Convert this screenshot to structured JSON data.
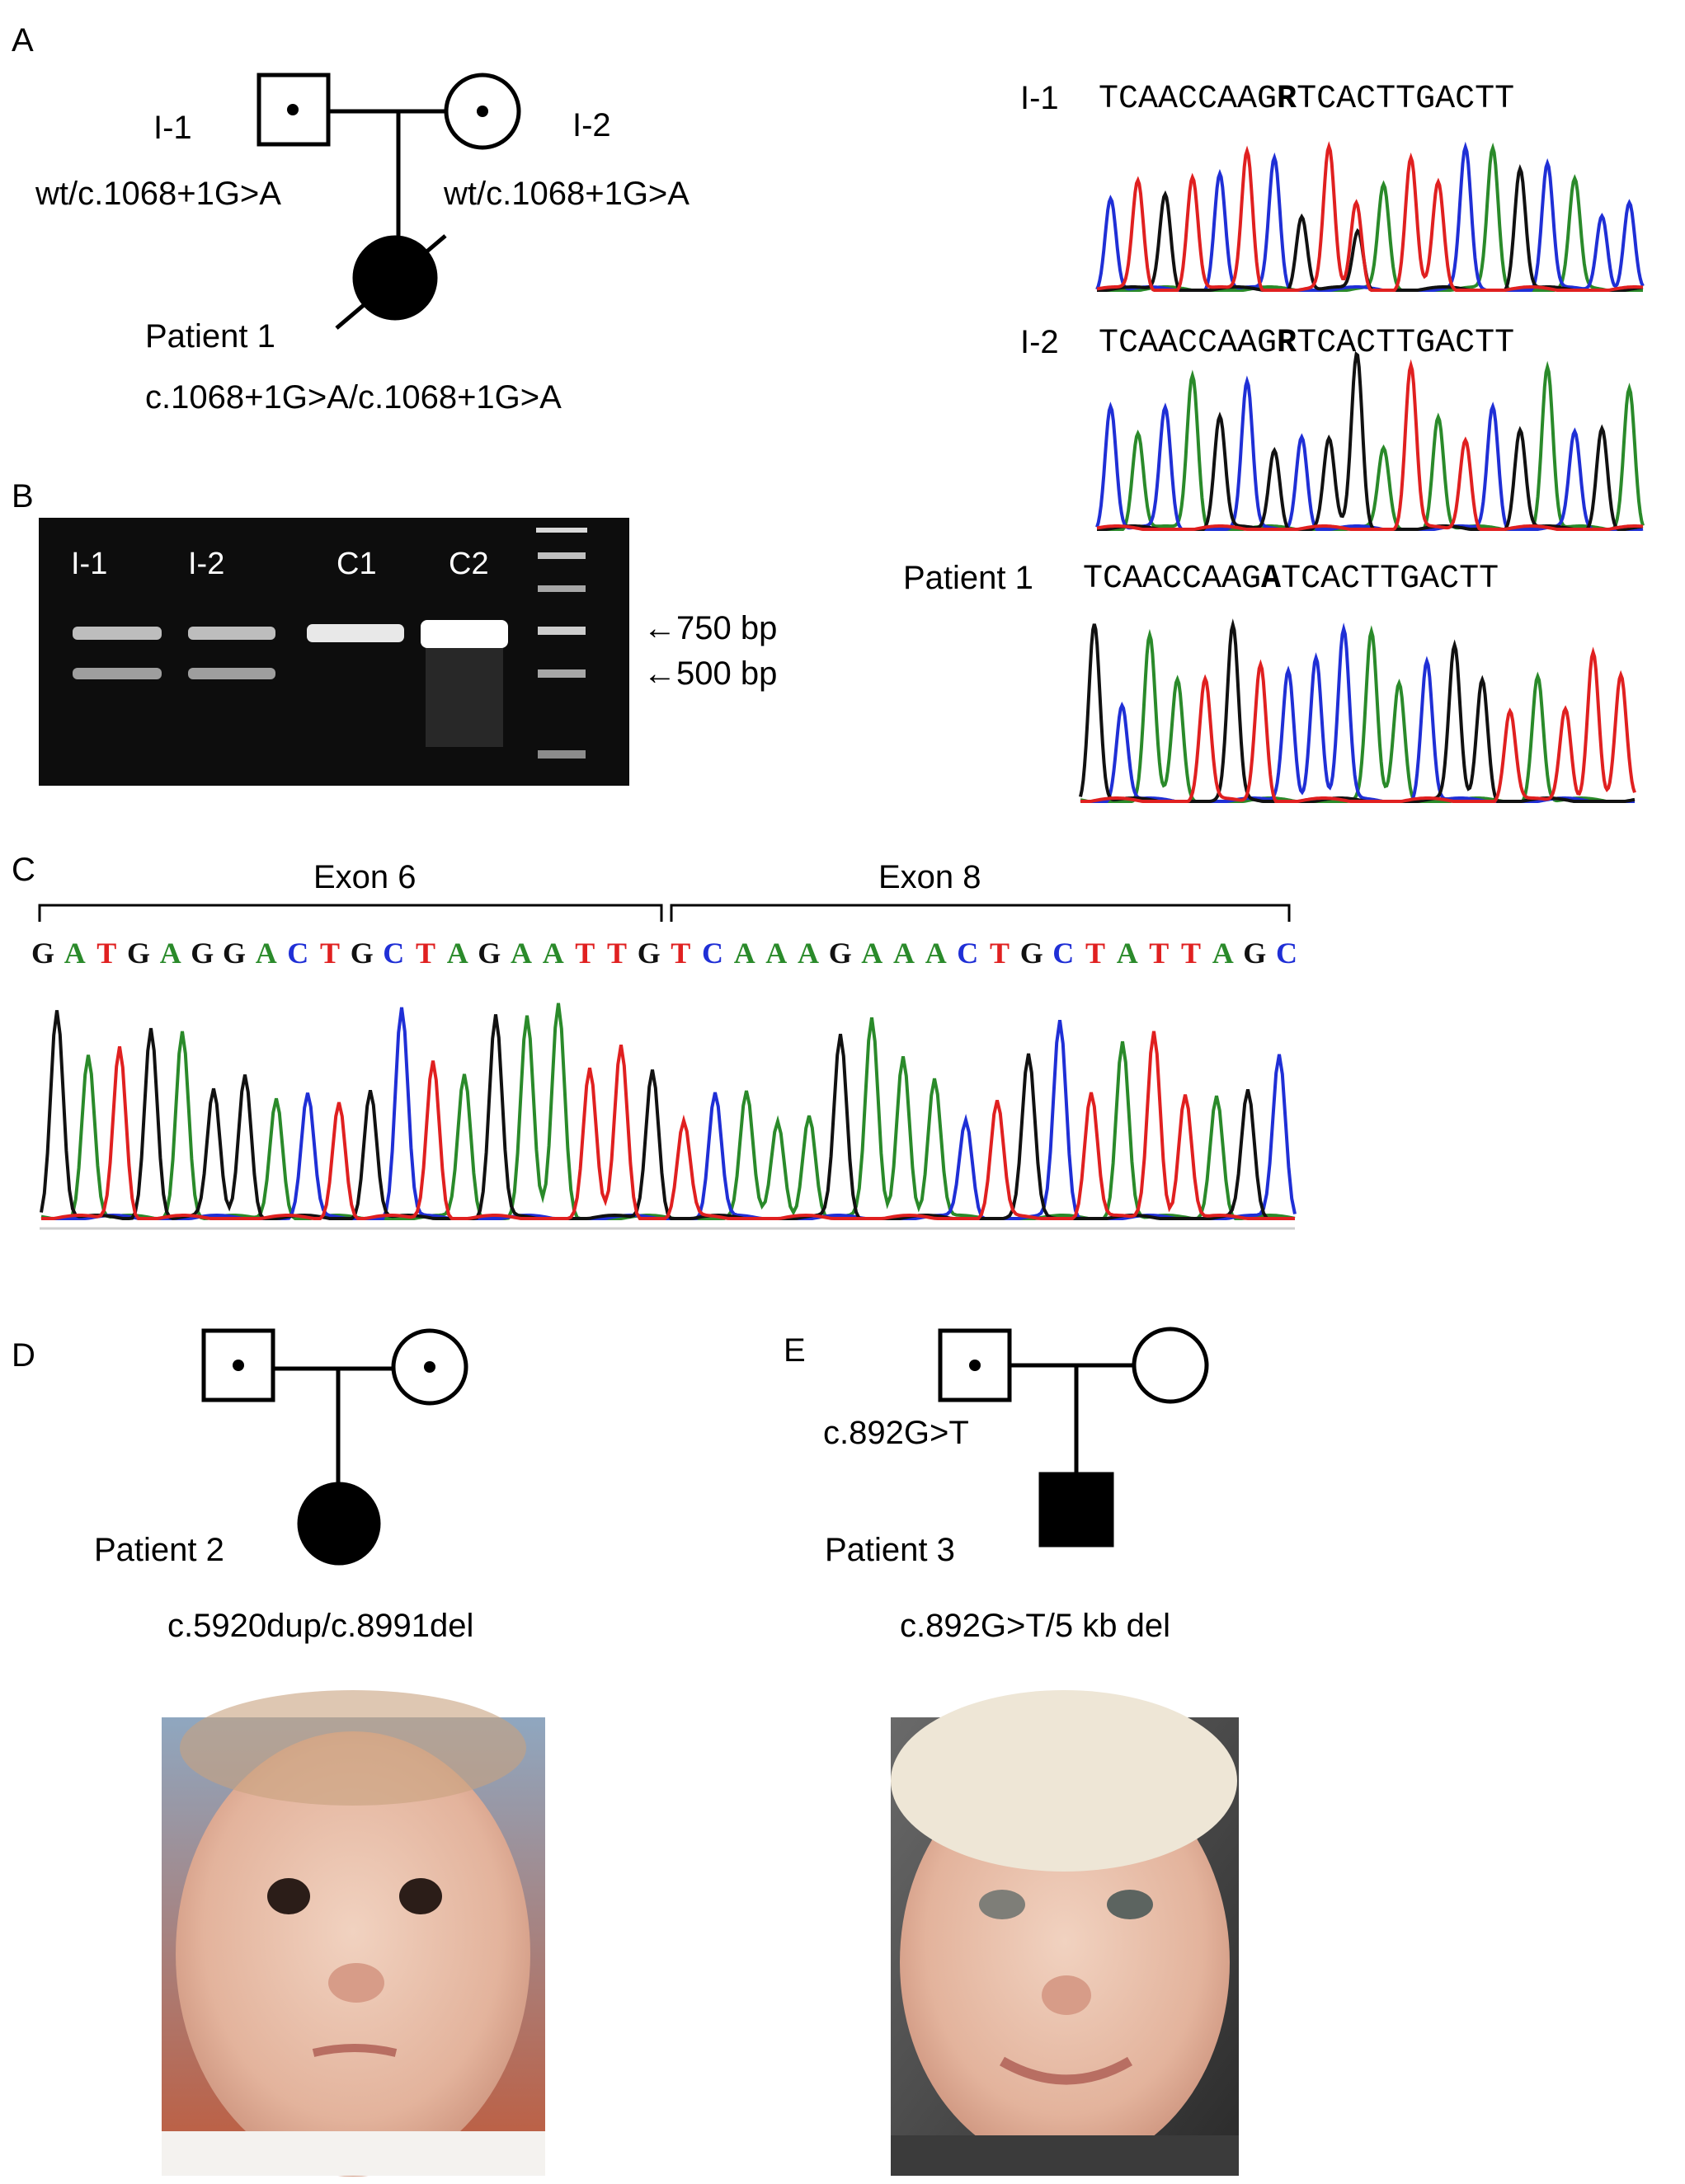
{
  "panels": {
    "A": {
      "label": "A",
      "pedigree": {
        "father_id": "I-1",
        "mother_id": "I-2",
        "father_genotype": "wt/c.1068+1G>A",
        "mother_genotype": "wt/c.1068+1G>A",
        "proband_name": "Patient 1",
        "proband_genotype": "c.1068+1G>A/c.1068+1G>A"
      },
      "traces": [
        {
          "label": "I-1",
          "seq_before": "TCAACCAAG",
          "seq_variant": "R",
          "seq_after": "TCACTTGACTT"
        },
        {
          "label": "I-2",
          "seq_before": "TCAACCAAG",
          "seq_variant": "R",
          "seq_after": "TCACTTGACTT"
        },
        {
          "label": "Patient 1",
          "seq_before": "TCAACCAAG",
          "seq_variant": "A",
          "seq_after": "TCACTTGACTT"
        }
      ]
    },
    "B": {
      "label": "B",
      "lanes": [
        "I-1",
        "I-2",
        "C1",
        "C2"
      ],
      "markers": [
        "750 bp",
        "500 bp"
      ],
      "arrow_glyph": "←"
    },
    "C": {
      "label": "C",
      "exon_left": "Exon 6",
      "exon_right": "Exon 8",
      "sequence": "GATGAGGACTGCTAGAATTGTCAAAGAAACTGCTATTAGC"
    },
    "D": {
      "label": "D",
      "proband_name": "Patient 2",
      "genotype": "c.5920dup/c.8991del"
    },
    "E": {
      "label": "E",
      "father_genotype": "c.892G>T",
      "proband_name": "Patient 3",
      "genotype": "c.892G>T/5 kb del"
    }
  },
  "colors": {
    "A": "#2a8a2a",
    "C": "#1f2fd6",
    "G": "#111111",
    "T": "#e02020",
    "line": "#000000",
    "gel_bg": "#0d0d0d",
    "band": "#f2f2f2",
    "skin": "#e9c3ad"
  },
  "icons": {
    "carrier_male": "square-with-dot",
    "carrier_female": "circle-with-dot",
    "affected_female": "filled-circle",
    "affected_male": "filled-square",
    "unaffected_female": "empty-circle"
  }
}
